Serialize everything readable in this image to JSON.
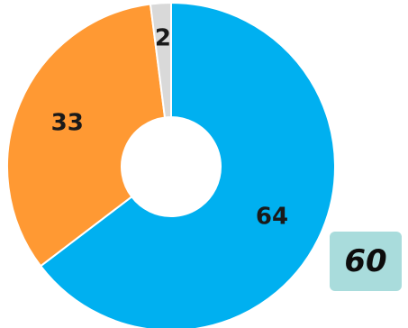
{
  "chart_data": {
    "type": "pie",
    "variant": "donut",
    "categories": [
      "",
      "",
      ""
    ],
    "values": [
      64,
      33,
      2
    ],
    "colors": [
      "#00b0f0",
      "#ff9933",
      "#d9d9d9"
    ],
    "labels": [
      "64",
      "33",
      "2"
    ],
    "legend": "none"
  },
  "badge": {
    "value": "60",
    "color": "#a9dcdc"
  }
}
